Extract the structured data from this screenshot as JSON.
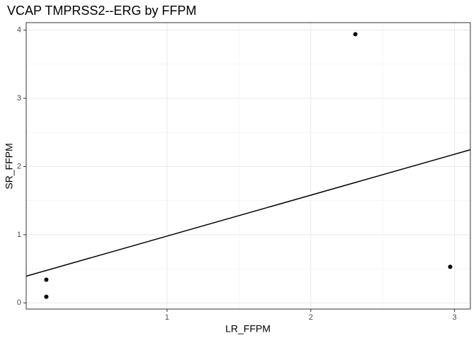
{
  "chart_data": {
    "type": "scatter",
    "title": "VCAP TMPRSS2--ERG by FFPM",
    "x_label": "LR_FFPM",
    "y_label": "SR_FFPM",
    "series": [
      {
        "x": [
          0.16,
          0.16,
          2.31,
          2.97
        ],
        "values": [
          0.34,
          0.09,
          3.94,
          0.53
        ],
        "color": "#000000"
      }
    ],
    "fit": {
      "intercept": 0.38,
      "slope": 0.6,
      "color": "#000000"
    },
    "xlim": [
      0.02,
      3.11
    ],
    "ylim": [
      -0.09,
      4.11
    ],
    "xticks": [
      1,
      2,
      3
    ],
    "yticks": [
      0,
      1,
      2,
      3,
      4
    ],
    "grid": true
  }
}
